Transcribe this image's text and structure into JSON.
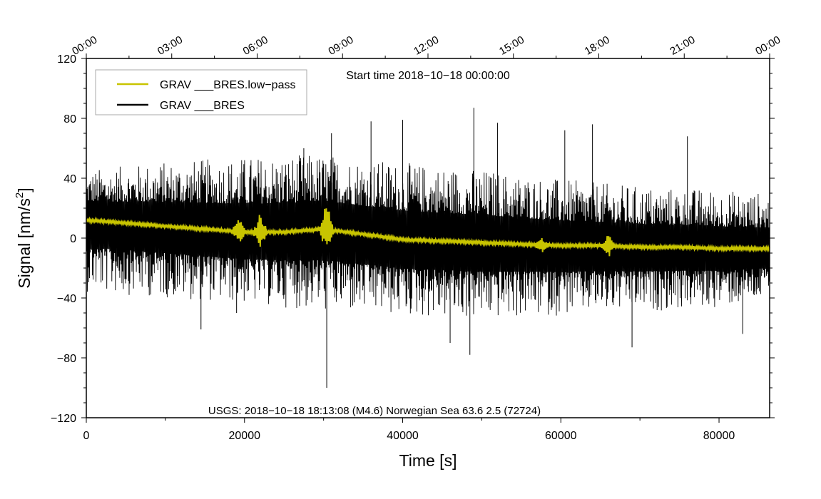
{
  "chart_data": {
    "type": "line",
    "xlabel": "Time [s]",
    "ylabel_main": "Signal [nm/s",
    "ylabel_sup": "2",
    "ylabel_end": "]",
    "xlim": [
      0,
      86400
    ],
    "ylim": [
      -120,
      120
    ],
    "x_ticks": [
      {
        "value": 0,
        "label": "0"
      },
      {
        "value": 20000,
        "label": "20000"
      },
      {
        "value": 40000,
        "label": "40000"
      },
      {
        "value": 60000,
        "label": "60000"
      },
      {
        "value": 80000,
        "label": "80000"
      }
    ],
    "y_ticks": [
      {
        "value": -120,
        "label": "−120"
      },
      {
        "value": -80,
        "label": "−80"
      },
      {
        "value": -40,
        "label": "−40"
      },
      {
        "value": 0,
        "label": "0"
      },
      {
        "value": 40,
        "label": "40"
      },
      {
        "value": 80,
        "label": "80"
      },
      {
        "value": 120,
        "label": "120"
      }
    ],
    "top_ticks": [
      {
        "value": 0,
        "label": "00:00"
      },
      {
        "value": 10800,
        "label": "03:00"
      },
      {
        "value": 21600,
        "label": "06:00"
      },
      {
        "value": 32400,
        "label": "09:00"
      },
      {
        "value": 43200,
        "label": "12:00"
      },
      {
        "value": 54000,
        "label": "15:00"
      },
      {
        "value": 64800,
        "label": "18:00"
      },
      {
        "value": 75600,
        "label": "21:00"
      },
      {
        "value": 86400,
        "label": "00:00"
      }
    ],
    "start_time_label": "Start time 2018−10−18 00:00:00",
    "event_label": "USGS: 2018−10−18 18:13:08 (M4.6) Norwegian Sea 63.6 2.5 (72724)",
    "legend": [
      {
        "name": "GRAV ___BRES.low−pass",
        "color": "#c8c400"
      },
      {
        "name": "GRAV ___BRES",
        "color": "#000000"
      }
    ],
    "series": [
      {
        "name": "GRAV ___BRES",
        "color": "#000000",
        "kind": "noise_envelope",
        "upper_envelope": {
          "x": [
            0,
            10000,
            20000,
            30000,
            40000,
            50000,
            60000,
            70000,
            80000,
            86400
          ],
          "y": [
            40,
            44,
            46,
            48,
            42,
            38,
            32,
            28,
            26,
            24
          ]
        },
        "lower_envelope": {
          "x": [
            0,
            10000,
            20000,
            30000,
            40000,
            50000,
            60000,
            70000,
            80000,
            86400
          ],
          "y": [
            -28,
            -32,
            -36,
            -40,
            -44,
            -46,
            -44,
            -42,
            -40,
            -36
          ]
        },
        "spikes": [
          {
            "x": 14500,
            "y": -61
          },
          {
            "x": 19000,
            "y": -50
          },
          {
            "x": 27500,
            "y": 60
          },
          {
            "x": 30400,
            "y": -100
          },
          {
            "x": 31000,
            "y": 70
          },
          {
            "x": 36000,
            "y": 78
          },
          {
            "x": 40000,
            "y": 79
          },
          {
            "x": 46000,
            "y": -70
          },
          {
            "x": 49000,
            "y": 87
          },
          {
            "x": 48500,
            "y": -78
          },
          {
            "x": 52000,
            "y": 77
          },
          {
            "x": 60500,
            "y": 72
          },
          {
            "x": 64000,
            "y": 76
          },
          {
            "x": 69000,
            "y": -73
          },
          {
            "x": 76000,
            "y": 68
          },
          {
            "x": 83000,
            "y": -64
          }
        ]
      },
      {
        "name": "GRAV ___BRES.low−pass",
        "color": "#c8c400",
        "x": [
          0,
          5000,
          10000,
          15000,
          20000,
          25000,
          30000,
          33000,
          36000,
          40000,
          45000,
          50000,
          55000,
          60000,
          65000,
          70000,
          75000,
          80000,
          86400
        ],
        "y": [
          12,
          10,
          8,
          6,
          4,
          4,
          6,
          4,
          2,
          -1,
          -2,
          -3,
          -4,
          -5,
          -5,
          -6,
          -6,
          -7,
          -7
        ],
        "bursts": [
          {
            "x": 19300,
            "amp": 8
          },
          {
            "x": 22000,
            "amp": 12
          },
          {
            "x": 30400,
            "amp": 18
          },
          {
            "x": 57500,
            "amp": 5
          },
          {
            "x": 66000,
            "amp": 7
          }
        ]
      }
    ]
  }
}
